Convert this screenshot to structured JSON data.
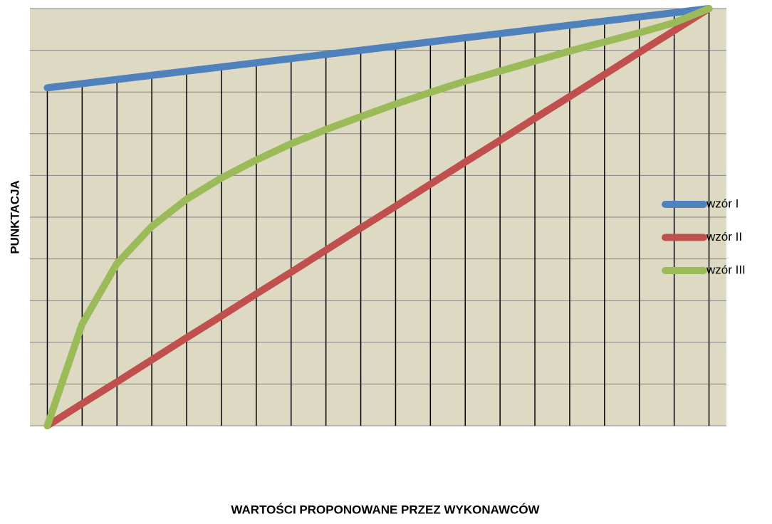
{
  "chart_data": {
    "type": "line",
    "x_label": "WARTOŚCI  PROPONOWANE PRZEZ WYKONAWCÓW",
    "y_label": "PUNKTACJA",
    "x": [
      0,
      1,
      2,
      3,
      4,
      5,
      6,
      7,
      8,
      9,
      10,
      11,
      12,
      13,
      14,
      15,
      16,
      17,
      18,
      19
    ],
    "xlim": [
      -0.5,
      19.5
    ],
    "ylim": [
      0,
      10
    ],
    "yticks": [
      0,
      1,
      2,
      3,
      4,
      5,
      6,
      7,
      8,
      9,
      10
    ],
    "grid": true,
    "drop_lines": true,
    "legend": "right",
    "background": "#ddd9c3",
    "series": [
      {
        "name": "wzór I",
        "color": "#4f81bd",
        "values": [
          8.1,
          8.2,
          8.3,
          8.4,
          8.5,
          8.6,
          8.7,
          8.8,
          8.9,
          9.0,
          9.1,
          9.2,
          9.3,
          9.4,
          9.5,
          9.6,
          9.7,
          9.8,
          9.9,
          10.0
        ]
      },
      {
        "name": "wzór II",
        "color": "#c0504d",
        "values": [
          0,
          0.53,
          1.05,
          1.58,
          2.11,
          2.63,
          3.16,
          3.68,
          4.21,
          4.74,
          5.26,
          5.79,
          6.32,
          6.84,
          7.37,
          7.89,
          8.42,
          8.95,
          9.47,
          10
        ]
      },
      {
        "name": "wzór III",
        "color": "#9bbb59",
        "values": [
          0,
          2.44,
          3.89,
          4.78,
          5.43,
          5.94,
          6.37,
          6.76,
          7.1,
          7.41,
          7.71,
          7.99,
          8.26,
          8.5,
          8.74,
          8.98,
          9.2,
          9.42,
          9.66,
          10
        ]
      }
    ]
  }
}
